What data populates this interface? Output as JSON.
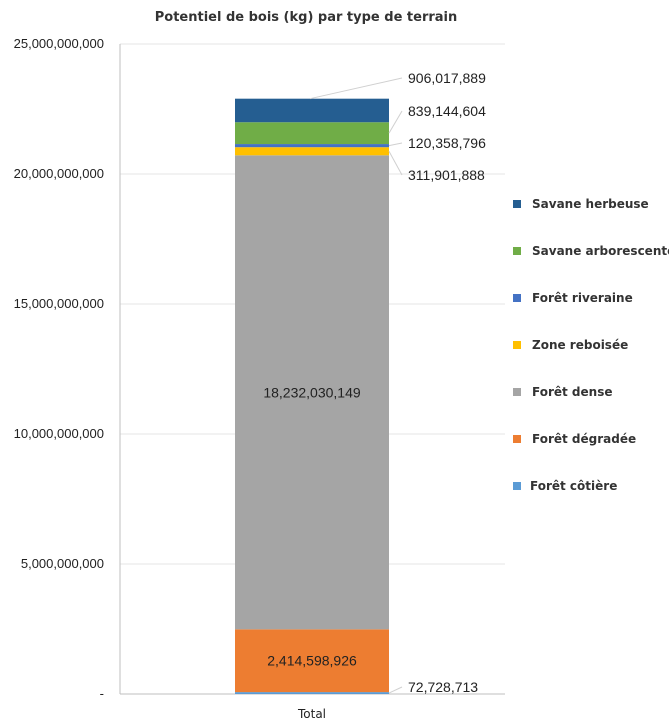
{
  "chart_data": {
    "type": "bar",
    "stacked": true,
    "title": "Potentiel de bois (kg) par type de terrain",
    "xlabel": "",
    "ylabel": "",
    "categories": [
      "Total"
    ],
    "ylim": [
      0,
      25000000000
    ],
    "y_ticks": [
      {
        "value": 0,
        "label": "-"
      },
      {
        "value": 5000000000,
        "label": "5,000,000,000"
      },
      {
        "value": 10000000000,
        "label": "10,000,000,000"
      },
      {
        "value": 15000000000,
        "label": "15,000,000,000"
      },
      {
        "value": 20000000000,
        "label": "20,000,000,000"
      },
      {
        "value": 25000000000,
        "label": "25,000,000,000"
      }
    ],
    "grid": true,
    "legend_position": "right",
    "series": [
      {
        "name": "Forêt côtière",
        "color": "#5b9bd5",
        "values": [
          72728713
        ],
        "label": "72,728,713"
      },
      {
        "name": "Forêt dégradée",
        "color": "#ed7d31",
        "values": [
          2414598926
        ],
        "label": "2,414,598,926"
      },
      {
        "name": "Forêt dense",
        "color": "#a5a5a5",
        "values": [
          18232030149
        ],
        "label": "18,232,030,149"
      },
      {
        "name": "Zone reboisée",
        "color": "#ffc000",
        "values": [
          311901888
        ],
        "label": "311,901,888"
      },
      {
        "name": "Forêt riveraine",
        "color": "#4472c4",
        "values": [
          120358796
        ],
        "label": "120,358,796"
      },
      {
        "name": "Savane arborescente",
        "color": "#70ad47",
        "values": [
          839144604
        ],
        "label": "839,144,604"
      },
      {
        "name": "Savane herbeuse",
        "color": "#255e91",
        "values": [
          906017889
        ],
        "label": "906,017,889"
      }
    ]
  }
}
